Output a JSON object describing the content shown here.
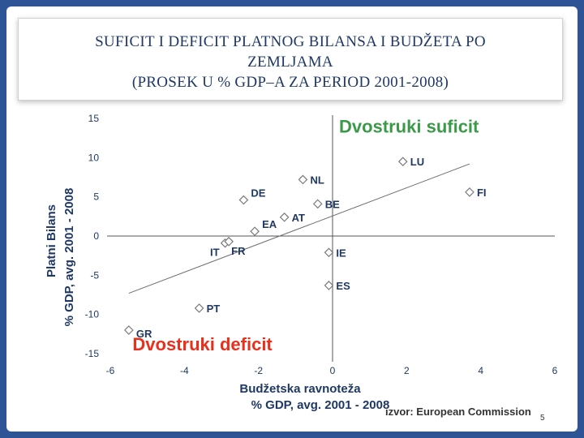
{
  "title_lines": [
    "SUFICIT I DEFICIT PLATNOG BILANSA I BUDŽETA PO",
    "ZEMLJAMA",
    "(PROSEK U % GDP–A ZA PERIOD 2001-2008)"
  ],
  "source_text": "izvor: European Commission",
  "page_number": "5",
  "colors": {
    "frame": "#2f5496",
    "title": "#1f3864",
    "axis_text": "#1f3864",
    "surplus": "#3a9a48",
    "deficit": "#e8301c",
    "marker": "#7a7a7a"
  },
  "chart_data": {
    "type": "scatter",
    "xlabel": "Budžetska ravnoteža",
    "xlabel2": "% GDP, avg. 2001 - 2008",
    "ylabel": "Platni Bilans",
    "ylabel2": "% GDP, avg. 2001 - 2008",
    "xlim": [
      -6,
      6
    ],
    "ylim": [
      -15,
      15
    ],
    "xticks": [
      "-6",
      "-4",
      "-2",
      "0",
      "2",
      "4",
      "6"
    ],
    "yticks": [
      "15",
      "10",
      "5",
      "0",
      "-5",
      "-10",
      "-15"
    ],
    "annotations": {
      "top": "Dvostruki suficit",
      "bottom": "Dvostruki deficit"
    },
    "points": [
      {
        "label": "LU",
        "x": 1.9,
        "y": 9.5
      },
      {
        "label": "FI",
        "x": 3.7,
        "y": 5.6
      },
      {
        "label": "NL",
        "x": -0.8,
        "y": 7.2
      },
      {
        "label": "DE",
        "x": -2.4,
        "y": 4.6
      },
      {
        "label": "BE",
        "x": -0.4,
        "y": 4.1
      },
      {
        "label": "AT",
        "x": -1.3,
        "y": 2.4
      },
      {
        "label": "EA",
        "x": -2.1,
        "y": 0.6
      },
      {
        "label": "IT",
        "x": -2.9,
        "y": -0.9
      },
      {
        "label": "FR",
        "x": -2.8,
        "y": -0.7
      },
      {
        "label": "IE",
        "x": -0.1,
        "y": -2.1
      },
      {
        "label": "ES",
        "x": -0.1,
        "y": -6.3
      },
      {
        "label": "PT",
        "x": -3.6,
        "y": -9.2
      },
      {
        "label": "GR",
        "x": -5.5,
        "y": -12.0
      }
    ],
    "trendline": {
      "x": [
        -5.5,
        3.7
      ],
      "y": [
        -7.3,
        9.2
      ]
    }
  }
}
